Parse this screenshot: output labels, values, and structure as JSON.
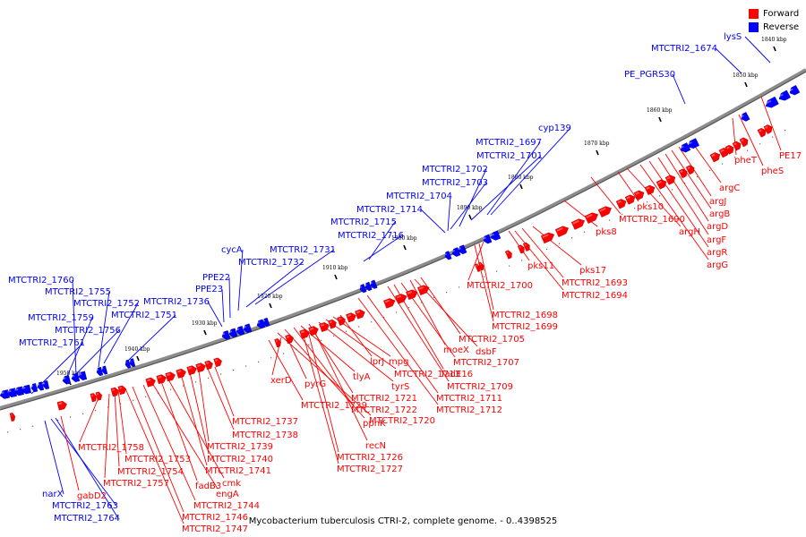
{
  "legend": {
    "forward_label": "Forward",
    "reverse_label": "Reverse",
    "forward_color": "#ff0000",
    "reverse_color": "#0000ff"
  },
  "caption": "Mycobacterium tuberculosis CTRI-2, complete genome. - 0..4398525",
  "ticks": [
    {
      "kbp": 1840,
      "label": "1840 kbp"
    },
    {
      "kbp": 1850,
      "label": "1850 kbp"
    },
    {
      "kbp": 1860,
      "label": "1860 kbp"
    },
    {
      "kbp": 1870,
      "label": "1870 kbp"
    },
    {
      "kbp": 1880,
      "label": "1880 kbp"
    },
    {
      "kbp": 1890,
      "label": "1890 kbp"
    },
    {
      "kbp": 1900,
      "label": "1900 kbp"
    },
    {
      "kbp": 1910,
      "label": "1910 kbp"
    },
    {
      "kbp": 1920,
      "label": "1920 kbp"
    },
    {
      "kbp": 1930,
      "label": "1930 kbp"
    },
    {
      "kbp": 1940,
      "label": "1940 kbp"
    },
    {
      "kbp": 1950,
      "label": "1950 kbp"
    }
  ],
  "reverse_labels": [
    "lysS",
    "MTCTRI2_1674",
    "PE_PGRS30",
    "cyp139",
    "MTCTRI2_1697",
    "MTCTRI2_1701",
    "MTCTRI2_1702",
    "MTCTRI2_1703",
    "MTCTRI2_1704",
    "MTCTRI2_1714",
    "MTCTRI2_1715",
    "MTCTRI2_1716",
    "MTCTRI2_1731",
    "MTCTRI2_1732",
    "cycA",
    "PPE22",
    "PPE23",
    "MTCTRI2_1736",
    "MTCTRI2_1760",
    "MTCTRI2_1755",
    "MTCTRI2_1752",
    "MTCTRI2_1751",
    "MTCTRI2_1759",
    "MTCTRI2_1756",
    "MTCTRI2_1761",
    "narX",
    "MTCTRI2_1763",
    "MTCTRI2_1764"
  ],
  "forward_labels": [
    "PE17",
    "pheT",
    "pheS",
    "argC",
    "argJ",
    "argB",
    "argD",
    "argF",
    "argR",
    "argG",
    "argH",
    "pks10",
    "MTCTRI2_1690",
    "pks8",
    "pks17",
    "MTCTRI2_1693",
    "MTCTRI2_1694",
    "pks11",
    "MTCTRI2_1700",
    "MTCTRI2_1698",
    "MTCTRI2_1699",
    "MTCTRI2_1705",
    "dsbF",
    "moeX",
    "MTCTRI2_1707",
    "fadE16",
    "MTCTRI2_1709",
    "MTCTRI2_1711",
    "MTCTRI2_1712",
    "lprJ",
    "mpg",
    "MTCTRI2_1713",
    "tyrS",
    "MTCTRI2_1721",
    "tlyA",
    "MTCTRI2_1722",
    "ppnK",
    "MTCTRI2_1720",
    "xerD",
    "pyrG",
    "MTCTRI2_1729",
    "recN",
    "MTCTRI2_1726",
    "MTCTRI2_1727",
    "MTCTRI2_1737",
    "MTCTRI2_1738",
    "MTCTRI2_1739",
    "MTCTRI2_1740",
    "MTCTRI2_1741",
    "cmk",
    "fadB3",
    "engA",
    "MTCTRI2_1744",
    "MTCTRI2_1746",
    "MTCTRI2_1747",
    "MTCTRI2_1758",
    "MTCTRI2_1753",
    "MTCTRI2_1754",
    "MTCTRI2_1757",
    "gabD2"
  ]
}
